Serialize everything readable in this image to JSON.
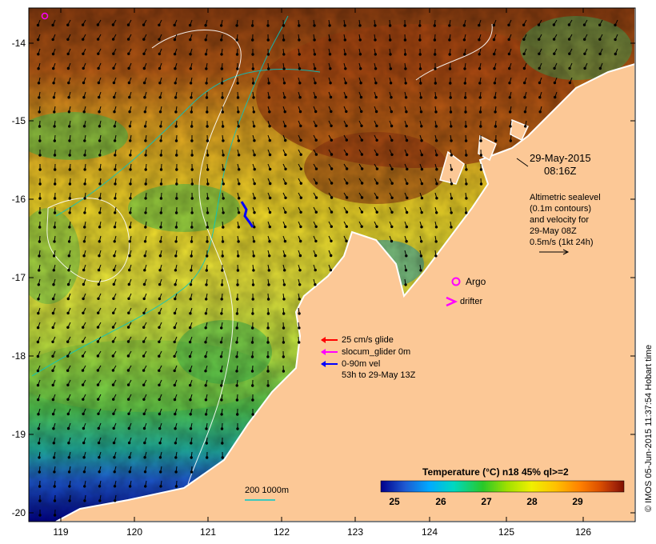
{
  "map": {
    "lon_range": [
      118.6,
      126.7
    ],
    "lat_range": [
      -20.1,
      -13.6
    ],
    "y_ticks": [
      "-14",
      "-15",
      "-16",
      "-17",
      "-18",
      "-19",
      "-20"
    ],
    "x_ticks": [
      "119",
      "120",
      "121",
      "122",
      "123",
      "124",
      "125",
      "126"
    ]
  },
  "date_block": {
    "date": "29-May-2015",
    "time": "08:16Z"
  },
  "altimetry_note": {
    "lines": [
      "Altimetric sealevel",
      "(0.1m contours)",
      "and velocity for",
      "29-May 08Z",
      "0.5m/s (1kt 24h)"
    ]
  },
  "symbols": {
    "argo_label": "Argo",
    "drifter_label": "drifter",
    "argo_color": "#ff00ff",
    "drifter_color": "#ff00ff"
  },
  "glider_legend": {
    "glide_label": "25 cm/s glide",
    "slocum_label": "slocum_glider 0m",
    "vel_label": "0-90m vel",
    "time_label": "53h to 29-May 13Z",
    "glide_color": "#ff0000",
    "slocum_color": "#ff00ff",
    "vel_color": "#0000ff"
  },
  "bathymetry_legend": {
    "label": "200  1000m",
    "color": "#00c8c8"
  },
  "colorbar": {
    "title": "Temperature (°C) n18 45% ql>=2",
    "ticks": [
      "25",
      "26",
      "27",
      "28",
      "29"
    ],
    "colors": [
      "#00008b",
      "#1e5ad2",
      "#00aaff",
      "#00d8c0",
      "#28c828",
      "#a0e000",
      "#f0f000",
      "#ffc000",
      "#ff8000",
      "#dc5000",
      "#a82808",
      "#801000"
    ]
  },
  "credit": "© IMOS 05-Jun-2015 11:37:54 Hobart time",
  "colors": {
    "land": "#fcc896",
    "coast": "#ffffff"
  }
}
